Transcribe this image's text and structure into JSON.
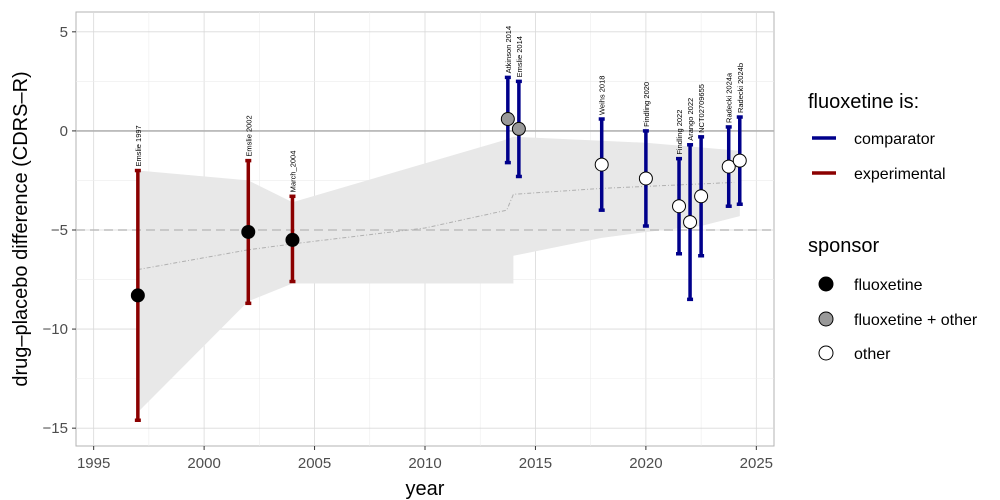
{
  "chart_data": {
    "type": "scatter",
    "xlabel": "year",
    "ylabel": "drug–placebo difference (CDRS–R)",
    "xlim": [
      1994.2,
      2025.8
    ],
    "ylim": [
      -15.9,
      6.0
    ],
    "xticks": [
      1995,
      2000,
      2005,
      2010,
      2015,
      2020,
      2025
    ],
    "yticks": [
      5,
      0,
      -5,
      -10,
      -15
    ],
    "ytick_labels": [
      "5",
      "0",
      "−5",
      "−10",
      "−15"
    ],
    "reference_lines": [
      {
        "y": 0,
        "style": "solid"
      },
      {
        "y": -5,
        "style": "dashed"
      }
    ],
    "colors": {
      "comparator": "#00008b",
      "experimental": "#8b0000",
      "fluoxetine": "#000000",
      "fluoxetine_other": "#999999",
      "other": "#ffffff",
      "band": "#e8e8e8",
      "trend": "#b0b0b0"
    },
    "points": [
      {
        "label": "Emslie 1997",
        "year": 1997.0,
        "estimate": -8.3,
        "lower": -14.6,
        "upper": -2.0,
        "role": "experimental",
        "sponsor": "fluoxetine"
      },
      {
        "label": "Emslie 2002",
        "year": 2002.0,
        "estimate": -5.1,
        "lower": -8.7,
        "upper": -1.5,
        "role": "experimental",
        "sponsor": "fluoxetine"
      },
      {
        "label": "March_2004",
        "year": 2004.0,
        "estimate": -5.5,
        "lower": -7.6,
        "upper": -3.3,
        "role": "experimental",
        "sponsor": "fluoxetine"
      },
      {
        "label": "Atkinson 2014",
        "year": 2013.75,
        "estimate": 0.6,
        "lower": -1.6,
        "upper": 2.7,
        "role": "comparator",
        "sponsor": "fluoxetine + other"
      },
      {
        "label": "Emslie 2014",
        "year": 2014.25,
        "estimate": 0.1,
        "lower": -2.3,
        "upper": 2.5,
        "role": "comparator",
        "sponsor": "fluoxetine + other"
      },
      {
        "label": "Weihs 2018",
        "year": 2018.0,
        "estimate": -1.7,
        "lower": -4.0,
        "upper": 0.6,
        "role": "comparator",
        "sponsor": "other"
      },
      {
        "label": "Findling 2020",
        "year": 2020.0,
        "estimate": -2.4,
        "lower": -4.8,
        "upper": 0.0,
        "role": "comparator",
        "sponsor": "other"
      },
      {
        "label": "Findling 2022",
        "year": 2021.5,
        "estimate": -3.8,
        "lower": -6.2,
        "upper": -1.4,
        "role": "comparator",
        "sponsor": "other"
      },
      {
        "label": "Arango 2022",
        "year": 2022.0,
        "estimate": -4.6,
        "lower": -8.5,
        "upper": -0.7,
        "role": "comparator",
        "sponsor": "other"
      },
      {
        "label": "NCT02709655",
        "year": 2022.5,
        "estimate": -3.3,
        "lower": -6.3,
        "upper": -0.3,
        "role": "comparator",
        "sponsor": "other"
      },
      {
        "label": "Radecki 2024a",
        "year": 2023.75,
        "estimate": -1.8,
        "lower": -3.8,
        "upper": 0.2,
        "role": "comparator",
        "sponsor": "other"
      },
      {
        "label": "Radecki 2024b",
        "year": 2024.25,
        "estimate": -1.5,
        "lower": -3.7,
        "upper": 0.7,
        "role": "comparator",
        "sponsor": "other"
      }
    ],
    "band": {
      "upper": [
        [
          1997,
          -2.0
        ],
        [
          2002,
          -2.5
        ],
        [
          2004,
          -3.6
        ],
        [
          2013.5,
          -0.5
        ],
        [
          2014,
          -0.3
        ],
        [
          2018,
          -0.5
        ],
        [
          2020,
          -0.6
        ],
        [
          2024.25,
          -1.0
        ]
      ],
      "lower": [
        [
          2024.25,
          -4.3
        ],
        [
          2022.5,
          -4.8
        ],
        [
          2020,
          -5.1
        ],
        [
          2018,
          -5.4
        ],
        [
          2014,
          -6.3
        ],
        [
          2014,
          -7.7
        ],
        [
          2004,
          -7.7
        ],
        [
          2002,
          -8.6
        ],
        [
          1997,
          -14.2
        ]
      ]
    },
    "trend": [
      [
        1997,
        -7.0
      ],
      [
        2002,
        -6.0
      ],
      [
        2004,
        -5.7
      ],
      [
        2010,
        -4.9
      ],
      [
        2013.7,
        -4.0
      ],
      [
        2014,
        -3.2
      ],
      [
        2018,
        -2.9
      ],
      [
        2020,
        -2.8
      ],
      [
        2024,
        -2.6
      ]
    ],
    "legend": {
      "color_title": "fluoxetine is:",
      "color_items": [
        {
          "label": "comparator",
          "color": "#00008b"
        },
        {
          "label": "experimental",
          "color": "#8b0000"
        }
      ],
      "fill_title": "sponsor",
      "fill_items": [
        {
          "label": "fluoxetine",
          "fill": "#000000"
        },
        {
          "label": "fluoxetine + other",
          "fill": "#999999"
        },
        {
          "label": "other",
          "fill": "#ffffff"
        }
      ]
    }
  }
}
